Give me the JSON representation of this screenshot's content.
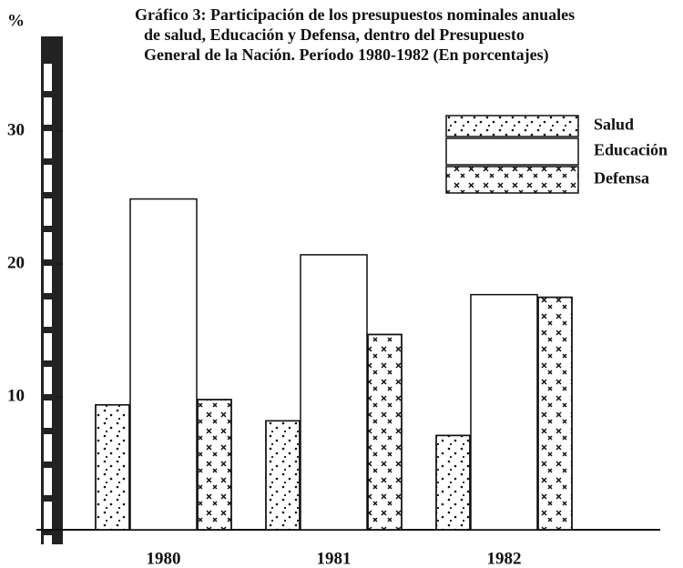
{
  "chart_data": {
    "type": "bar",
    "title": [
      "Gráfico 3: Participación de los presupuestos nominales anuales",
      "de salud, Educación y Defensa, dentro del Presupuesto",
      "General de la Nación. Período 1980-1982 (En porcentajes)"
    ],
    "y_label": "%",
    "categories": [
      "1980",
      "1981",
      "1982"
    ],
    "series": [
      {
        "name": "Salud",
        "color": "#ffffff",
        "pattern": "dots",
        "values": [
          9.4,
          8.2,
          7.1
        ]
      },
      {
        "name": "Educación",
        "color": "#ffffff",
        "pattern": "none",
        "values": [
          24.9,
          20.7,
          17.7
        ]
      },
      {
        "name": "Defensa",
        "color": "#ffffff",
        "pattern": "crosses",
        "values": [
          9.8,
          14.7,
          17.5
        ]
      }
    ],
    "ylim": [
      0,
      37
    ],
    "yticks": [
      10,
      20,
      30
    ],
    "grid": false,
    "legend": "upper right"
  }
}
